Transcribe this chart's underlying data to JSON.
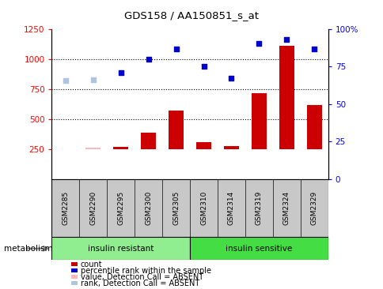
{
  "title": "GDS158 / AA150851_s_at",
  "samples": [
    "GSM2285",
    "GSM2290",
    "GSM2295",
    "GSM2300",
    "GSM2305",
    "GSM2310",
    "GSM2314",
    "GSM2319",
    "GSM2324",
    "GSM2329"
  ],
  "groups": [
    {
      "label": "insulin resistant",
      "color": "#90EE90",
      "start": 0,
      "end": 5
    },
    {
      "label": "insulin sensitive",
      "color": "#44DD44",
      "start": 5,
      "end": 10
    }
  ],
  "bar_values": [
    250,
    265,
    270,
    385,
    570,
    305,
    275,
    715,
    1110,
    620
  ],
  "bar_color": "#CC0000",
  "bar_absent_color": "#FFB6C1",
  "absent_bar_indices": [
    1
  ],
  "scatter_values": [
    820,
    830,
    885,
    995,
    1080,
    940,
    840,
    1130,
    1165,
    1080
  ],
  "scatter_color": "#0000CC",
  "scatter_absent_color": "#B0C4DE",
  "absent_scatter_indices": [
    0,
    1
  ],
  "ylim": [
    0,
    1250
  ],
  "yticks_left": [
    250,
    500,
    750,
    1000,
    1250
  ],
  "yticks_right": [
    0,
    25,
    50,
    75,
    100
  ],
  "ytick_labels_right": [
    "0",
    "25",
    "50",
    "75",
    "100%"
  ],
  "grid_lines": [
    500,
    750,
    1000
  ],
  "legend_items": [
    {
      "color": "#CC0000",
      "label": "count"
    },
    {
      "color": "#0000CC",
      "label": "percentile rank within the sample"
    },
    {
      "color": "#FFB6C1",
      "label": "value, Detection Call = ABSENT"
    },
    {
      "color": "#B0C4DE",
      "label": "rank, Detection Call = ABSENT"
    }
  ]
}
